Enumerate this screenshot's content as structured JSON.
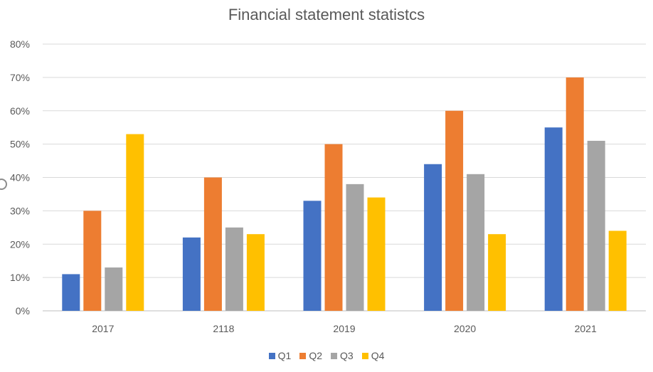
{
  "chart_data": {
    "type": "bar",
    "title": "Financial statement statistcs",
    "categories": [
      "2017",
      "2118",
      "2019",
      "2020",
      "2021"
    ],
    "series": [
      {
        "name": "Q1",
        "color": "#4472C4",
        "values": [
          11,
          22,
          33,
          44,
          55
        ]
      },
      {
        "name": "Q2",
        "color": "#ED7D31",
        "values": [
          30,
          40,
          50,
          60,
          70
        ]
      },
      {
        "name": "Q3",
        "color": "#A5A5A5",
        "values": [
          13,
          25,
          38,
          41,
          51
        ]
      },
      {
        "name": "Q4",
        "color": "#FFC000",
        "values": [
          53,
          23,
          34,
          23,
          24
        ]
      }
    ],
    "ylim": [
      0,
      80
    ],
    "y_ticks": [
      "0%",
      "10%",
      "20%",
      "30%",
      "40%",
      "50%",
      "60%",
      "70%",
      "80%"
    ],
    "grid": true,
    "legend_position": "bottom"
  }
}
